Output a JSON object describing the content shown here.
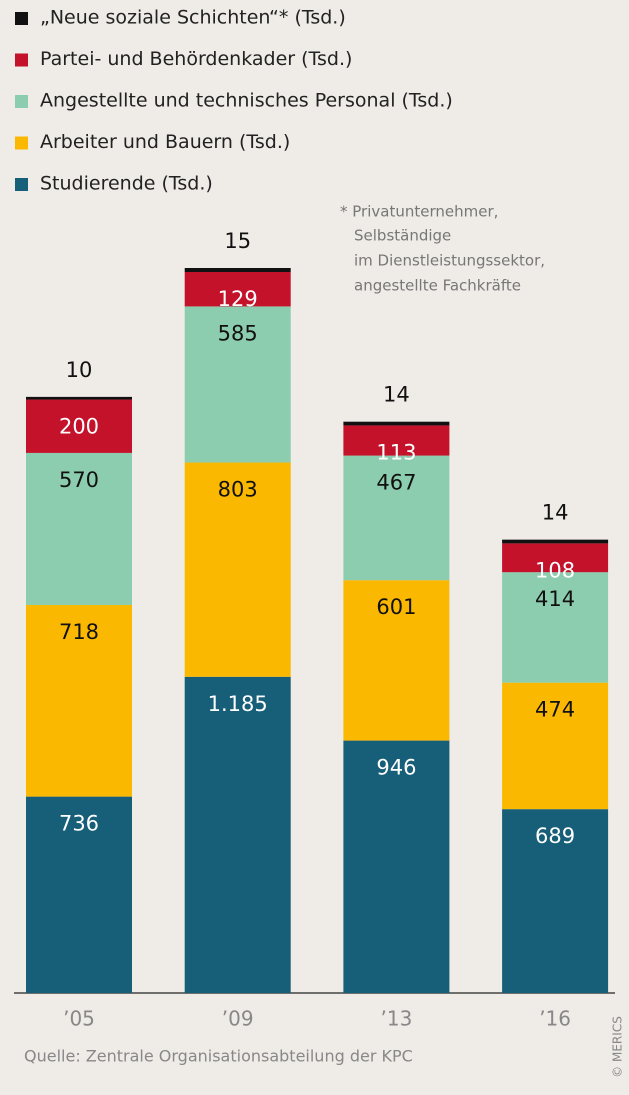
{
  "chart_data": {
    "type": "stacked-bar",
    "categories": [
      "’05",
      "’09",
      "’13",
      "’16"
    ],
    "series": [
      {
        "name": "Studierende (Tsd.)",
        "color": "#175e78",
        "values": [
          736,
          1185,
          946,
          689
        ],
        "value_labels": [
          "736",
          "1.185",
          "946",
          "689"
        ]
      },
      {
        "name": "Arbeiter und Bauern (Tsd.)",
        "color": "#fbb800",
        "values": [
          718,
          803,
          601,
          474
        ]
      },
      {
        "name": "Angestellte und technisches Personal (Tsd.)",
        "color": "#8dcdaf",
        "values": [
          570,
          585,
          467,
          414
        ]
      },
      {
        "name": "Partei- und Behördenkader (Tsd.)",
        "color": "#c3122a",
        "values": [
          200,
          129,
          113,
          108
        ]
      },
      {
        "name": "„Neue soziale Schichten“* (Tsd.)",
        "color": "#111111",
        "values": [
          10,
          15,
          14,
          14
        ]
      }
    ],
    "footnote": [
      "* Privatunternehmer,",
      "Selbständige",
      "im Dienstleistungssektor,",
      "angestellte Fachkräfte"
    ],
    "source": "Quelle: Zentrale Organisationsabteilung der KPC",
    "credit": "© MERICS"
  }
}
